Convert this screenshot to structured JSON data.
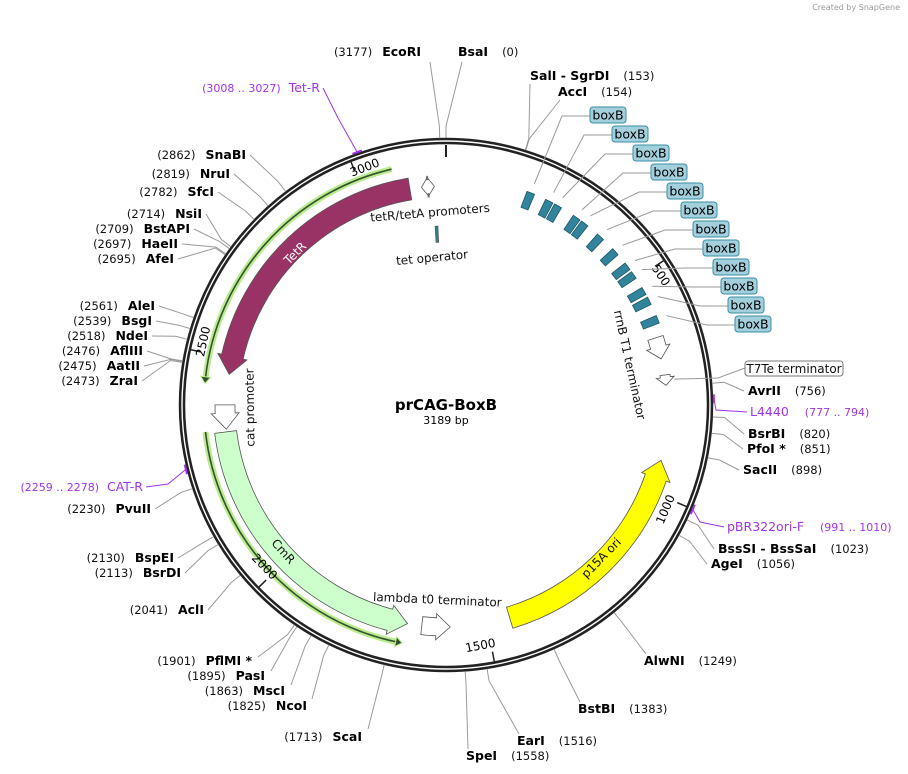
{
  "credit": "Created by SnapGene",
  "plasmid": {
    "name": "prCAG-BoxB",
    "length_label": "3189 bp",
    "length_bp": 3189
  },
  "ticks": [
    500,
    1000,
    1500,
    2000,
    2500,
    3000
  ],
  "enzymes": [
    {
      "name": "EcoRI",
      "pos": 3177
    },
    {
      "name": "BsaI",
      "pos": 0
    },
    {
      "name": "SalI  - SgrDI",
      "pos": 153
    },
    {
      "name": "AccI",
      "pos": 154
    },
    {
      "name": "AvrII",
      "pos": 756
    },
    {
      "name": "BsrBI",
      "pos": 820
    },
    {
      "name": "PfoI *",
      "pos": 851
    },
    {
      "name": "SacII",
      "pos": 898
    },
    {
      "name": "BssSI  - BssSaI",
      "pos": 1023
    },
    {
      "name": "AgeI",
      "pos": 1056
    },
    {
      "name": "AlwNI",
      "pos": 1249
    },
    {
      "name": "BstBI",
      "pos": 1383
    },
    {
      "name": "EarI",
      "pos": 1516
    },
    {
      "name": "SpeI",
      "pos": 1558
    },
    {
      "name": "ScaI",
      "pos": 1713
    },
    {
      "name": "NcoI",
      "pos": 1825
    },
    {
      "name": "MscI",
      "pos": 1863
    },
    {
      "name": "PasI",
      "pos": 1895
    },
    {
      "name": "PflMI *",
      "pos": 1901
    },
    {
      "name": "AclI",
      "pos": 2041
    },
    {
      "name": "BsrDI",
      "pos": 2113
    },
    {
      "name": "BspEI",
      "pos": 2130
    },
    {
      "name": "PvuII",
      "pos": 2230
    },
    {
      "name": "AleI",
      "pos": 2561
    },
    {
      "name": "BsgI",
      "pos": 2539
    },
    {
      "name": "NdeI",
      "pos": 2518
    },
    {
      "name": "AflIII",
      "pos": 2476
    },
    {
      "name": "AatII",
      "pos": 2475
    },
    {
      "name": "ZraI",
      "pos": 2473
    },
    {
      "name": "AfeI",
      "pos": 2695
    },
    {
      "name": "HaeII",
      "pos": 2697
    },
    {
      "name": "BstAPI",
      "pos": 2709
    },
    {
      "name": "NsiI",
      "pos": 2714
    },
    {
      "name": "SfcI",
      "pos": 2782
    },
    {
      "name": "NruI",
      "pos": 2819
    },
    {
      "name": "SnaBI",
      "pos": 2862
    }
  ],
  "primers": [
    {
      "name": "Tet-R",
      "range": "(3008 .. 3027)",
      "start": 3008,
      "end": 3027
    },
    {
      "name": "L4440",
      "range": "(777 .. 794)",
      "start": 777,
      "end": 794
    },
    {
      "name": "pBR322ori-F",
      "range": "(991 .. 1010)",
      "start": 991,
      "end": 1010
    },
    {
      "name": "CAT-R",
      "range": "(2259 .. 2278)",
      "start": 2259,
      "end": 2278
    }
  ],
  "features": [
    {
      "name": "TetR",
      "start": 2463,
      "end": 3105,
      "direction": "reverse",
      "color": "#993366"
    },
    {
      "name": "tetR/tetA promoters",
      "start": 3132,
      "end": 3162,
      "direction": "both",
      "color": "#ffffff"
    },
    {
      "name": "tet operator",
      "start": 3158,
      "end": 3166,
      "direction": "none",
      "color": "#31849b"
    },
    {
      "name": "cat promoter",
      "start": 2336,
      "end": 2392,
      "direction": "reverse",
      "color": "#ffffff"
    },
    {
      "name": "CmR",
      "start": 1683,
      "end": 2330,
      "direction": "reverse",
      "color": "#ccffcc"
    },
    {
      "name": "lambda t0 terminator",
      "start": 1585,
      "end": 1650,
      "direction": "reverse",
      "color": "#ffffff"
    },
    {
      "name": "p15A ori",
      "start": 925,
      "end": 1447,
      "direction": "reverse",
      "color": "#ffff00"
    },
    {
      "name": "rrnB T1 terminator",
      "start": 640,
      "end": 690,
      "direction": "forward",
      "color": "#ffffff"
    },
    {
      "name": "T7Te terminator",
      "start": 728,
      "end": 752,
      "direction": "forward",
      "color": "#ffffff"
    }
  ],
  "boxB": {
    "label": "boxB",
    "color": "#31849b",
    "label_fill": "#a3d0dc",
    "sites": [
      193,
      238,
      260,
      309,
      331,
      377,
      424,
      466,
      490,
      532,
      557,
      602
    ]
  },
  "orfs": [
    {
      "start": 2437,
      "end": 3074,
      "direction": "reverse"
    },
    {
      "start": 1687,
      "end": 2335,
      "direction": "reverse"
    }
  ]
}
